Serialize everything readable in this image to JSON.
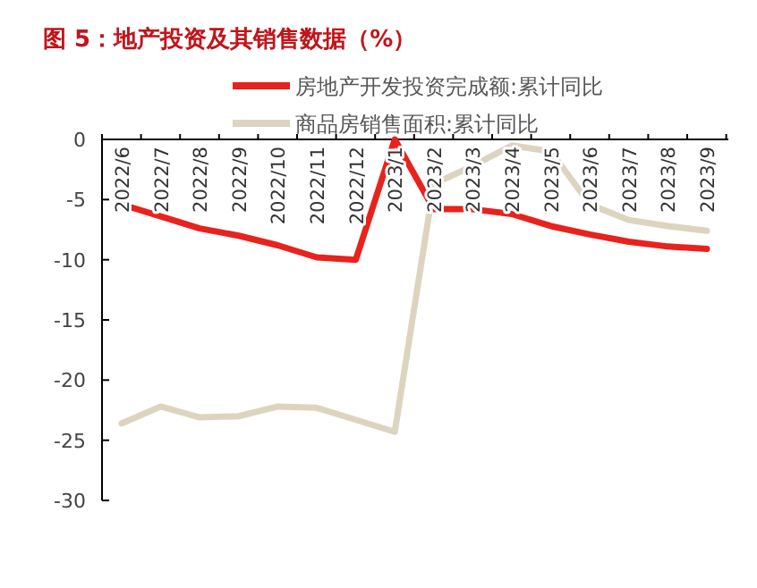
{
  "chart_data": {
    "type": "line",
    "title": "图 5：地产投资及其销售数据（%）",
    "categories": [
      "2022/6",
      "2022/7",
      "2022/8",
      "2022/9",
      "2022/10",
      "2022/11",
      "2022/12",
      "2023/1",
      "2023/2",
      "2023/3",
      "2023/4",
      "2023/5",
      "2023/6",
      "2023/7",
      "2023/8",
      "2023/9"
    ],
    "series": [
      {
        "name": "房地产开发投资完成额:累计同比",
        "color": "#e8221c",
        "values": [
          -5.4,
          -6.4,
          -7.4,
          -8.0,
          -8.8,
          -9.8,
          -10.0,
          0,
          -5.8,
          -5.8,
          -6.2,
          -7.2,
          -7.9,
          -8.5,
          -8.9,
          -9.1
        ]
      },
      {
        "name": "商品房销售面积:累计同比",
        "color": "#ddd4bf",
        "values": [
          -23.6,
          -22.2,
          -23.1,
          -23.0,
          -22.2,
          -22.3,
          -23.3,
          -24.3,
          -3.7,
          -2.2,
          -0.5,
          -1.0,
          -5.4,
          -6.7,
          -7.2,
          -7.6
        ]
      }
    ],
    "ylim": [
      -30,
      0
    ],
    "yticks": [
      0,
      -5,
      -10,
      -15,
      -20,
      -25,
      -30
    ],
    "grid": false,
    "legend": "top",
    "marker": "none",
    "line_style": "solid"
  }
}
